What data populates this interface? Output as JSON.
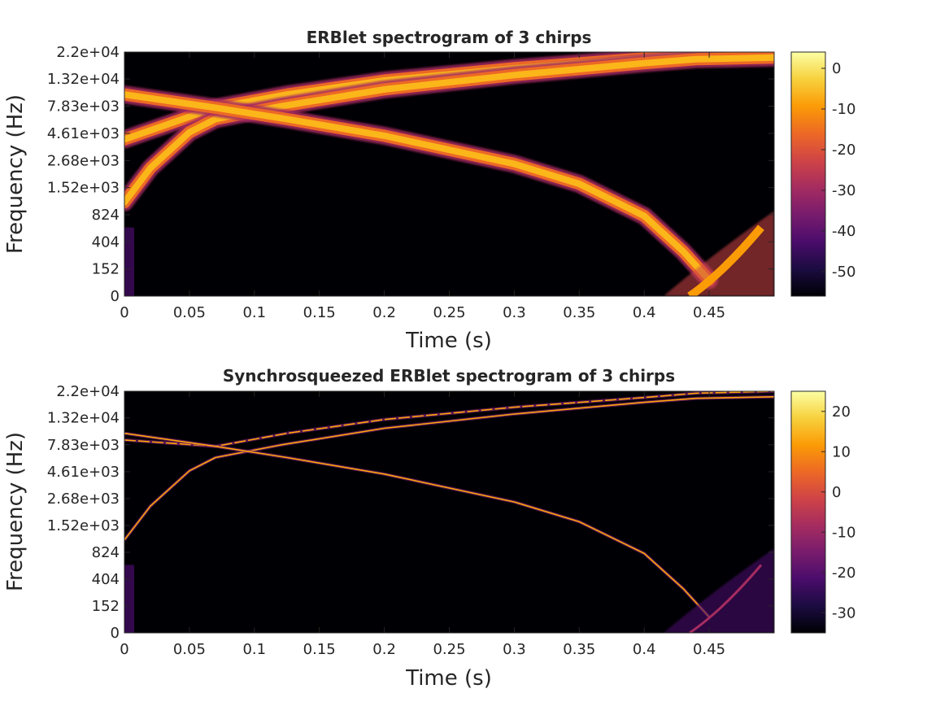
{
  "chart_data": [
    {
      "type": "heatmap",
      "title": "ERBlet spectrogram of 3 chirps",
      "xlabel": "Time (s)",
      "ylabel": "Frequency (Hz)",
      "xlim": [
        0,
        0.5
      ],
      "xticks": [
        0,
        0.05,
        0.1,
        0.15,
        0.2,
        0.25,
        0.3,
        0.35,
        0.4,
        0.45
      ],
      "xtick_labels": [
        "0",
        "0.05",
        "0.1",
        "0.15",
        "0.2",
        "0.25",
        "0.3",
        "0.35",
        "0.4",
        "0.45"
      ],
      "yscale": "erb",
      "yticks": [
        0,
        152,
        404,
        824,
        1520,
        2680,
        4610,
        7830,
        13200,
        22000
      ],
      "ytick_labels": [
        "0",
        "152",
        "404",
        "824",
        "1.52e+03",
        "2.68e+03",
        "4.61e+03",
        "7.83e+03",
        "1.32e+04",
        "2.2e+04"
      ],
      "colormap": "inferno",
      "clim": [
        -56,
        4
      ],
      "colorbar_ticks": [
        0,
        -10,
        -20,
        -30,
        -40,
        -50
      ],
      "colorbar_tick_labels": [
        "0",
        "-10",
        "-20",
        "-30",
        "-40",
        "-50"
      ],
      "grid": false,
      "series": [
        {
          "x": [
            0,
            0.07,
            0.125,
            0.2,
            0.3,
            0.4,
            0.44,
            0.5
          ],
          "y": [
            4100,
            7600,
            9800,
            12800,
            16200,
            19500,
            21200,
            22000
          ]
        },
        {
          "x": [
            0,
            0.02,
            0.05,
            0.07,
            0.12,
            0.2,
            0.3,
            0.4,
            0.44,
            0.5
          ],
          "y": [
            1100,
            2300,
            4700,
            6100,
            7800,
            10800,
            14200,
            17800,
            19200,
            19800
          ]
        },
        {
          "x": [
            0,
            0.07,
            0.125,
            0.2,
            0.3,
            0.35,
            0.4,
            0.43,
            0.45
          ],
          "y": [
            9800,
            7600,
            6100,
            4400,
            2500,
            1650,
            800,
            300,
            80
          ]
        }
      ]
    },
    {
      "type": "heatmap",
      "title": "Synchrosqueezed ERBlet spectrogram of 3 chirps",
      "xlabel": "Time (s)",
      "ylabel": "Frequency (Hz)",
      "xlim": [
        0,
        0.5
      ],
      "xticks": [
        0,
        0.05,
        0.1,
        0.15,
        0.2,
        0.25,
        0.3,
        0.35,
        0.4,
        0.45
      ],
      "xtick_labels": [
        "0",
        "0.05",
        "0.1",
        "0.15",
        "0.2",
        "0.25",
        "0.3",
        "0.35",
        "0.4",
        "0.45"
      ],
      "yscale": "erb",
      "yticks": [
        0,
        152,
        404,
        824,
        1520,
        2680,
        4610,
        7830,
        13200,
        22000
      ],
      "ytick_labels": [
        "0",
        "152",
        "404",
        "824",
        "1.52e+03",
        "2.68e+03",
        "4.61e+03",
        "7.83e+03",
        "1.32e+04",
        "2.2e+04"
      ],
      "colormap": "inferno",
      "clim": [
        -35,
        25
      ],
      "colorbar_ticks": [
        20,
        10,
        0,
        -10,
        -20,
        -30
      ],
      "colorbar_tick_labels": [
        "20",
        "10",
        "0",
        "-10",
        "-20",
        "-30"
      ],
      "grid": false,
      "series": [
        {
          "x": [
            0,
            0.07,
            0.125,
            0.2,
            0.3,
            0.4,
            0.44,
            0.5
          ],
          "y": [
            8600,
            7600,
            9800,
            12800,
            16200,
            19500,
            21200,
            22000
          ]
        },
        {
          "x": [
            0,
            0.02,
            0.05,
            0.07,
            0.12,
            0.2,
            0.3,
            0.4,
            0.44,
            0.5
          ],
          "y": [
            1100,
            2300,
            4700,
            6100,
            7800,
            10800,
            14200,
            17800,
            19200,
            19800
          ]
        },
        {
          "x": [
            0,
            0.07,
            0.125,
            0.2,
            0.3,
            0.35,
            0.4,
            0.43,
            0.45
          ],
          "y": [
            9800,
            7600,
            6100,
            4400,
            2500,
            1650,
            800,
            300,
            80
          ]
        }
      ]
    }
  ]
}
